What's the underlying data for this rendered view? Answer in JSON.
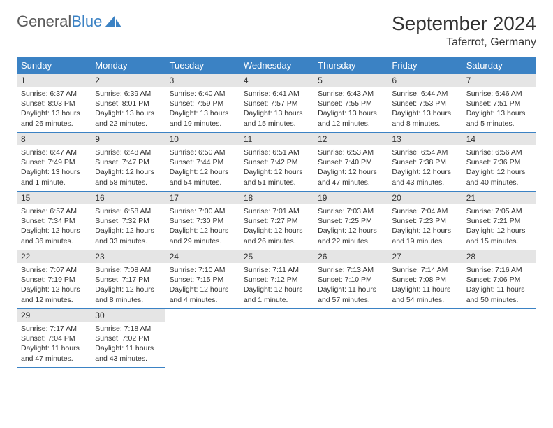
{
  "brand": {
    "word1": "General",
    "word2": "Blue"
  },
  "title": "September 2024",
  "location": "Taferrot, Germany",
  "colors": {
    "header_bg": "#3b82c4",
    "header_text": "#ffffff",
    "daynum_bg": "#e5e5e5",
    "border": "#3b82c4",
    "text": "#333333",
    "background": "#ffffff"
  },
  "columns": [
    "Sunday",
    "Monday",
    "Tuesday",
    "Wednesday",
    "Thursday",
    "Friday",
    "Saturday"
  ],
  "weeks": [
    [
      {
        "n": "1",
        "sr": "Sunrise: 6:37 AM",
        "ss": "Sunset: 8:03 PM",
        "d1": "Daylight: 13 hours",
        "d2": "and 26 minutes."
      },
      {
        "n": "2",
        "sr": "Sunrise: 6:39 AM",
        "ss": "Sunset: 8:01 PM",
        "d1": "Daylight: 13 hours",
        "d2": "and 22 minutes."
      },
      {
        "n": "3",
        "sr": "Sunrise: 6:40 AM",
        "ss": "Sunset: 7:59 PM",
        "d1": "Daylight: 13 hours",
        "d2": "and 19 minutes."
      },
      {
        "n": "4",
        "sr": "Sunrise: 6:41 AM",
        "ss": "Sunset: 7:57 PM",
        "d1": "Daylight: 13 hours",
        "d2": "and 15 minutes."
      },
      {
        "n": "5",
        "sr": "Sunrise: 6:43 AM",
        "ss": "Sunset: 7:55 PM",
        "d1": "Daylight: 13 hours",
        "d2": "and 12 minutes."
      },
      {
        "n": "6",
        "sr": "Sunrise: 6:44 AM",
        "ss": "Sunset: 7:53 PM",
        "d1": "Daylight: 13 hours",
        "d2": "and 8 minutes."
      },
      {
        "n": "7",
        "sr": "Sunrise: 6:46 AM",
        "ss": "Sunset: 7:51 PM",
        "d1": "Daylight: 13 hours",
        "d2": "and 5 minutes."
      }
    ],
    [
      {
        "n": "8",
        "sr": "Sunrise: 6:47 AM",
        "ss": "Sunset: 7:49 PM",
        "d1": "Daylight: 13 hours",
        "d2": "and 1 minute."
      },
      {
        "n": "9",
        "sr": "Sunrise: 6:48 AM",
        "ss": "Sunset: 7:47 PM",
        "d1": "Daylight: 12 hours",
        "d2": "and 58 minutes."
      },
      {
        "n": "10",
        "sr": "Sunrise: 6:50 AM",
        "ss": "Sunset: 7:44 PM",
        "d1": "Daylight: 12 hours",
        "d2": "and 54 minutes."
      },
      {
        "n": "11",
        "sr": "Sunrise: 6:51 AM",
        "ss": "Sunset: 7:42 PM",
        "d1": "Daylight: 12 hours",
        "d2": "and 51 minutes."
      },
      {
        "n": "12",
        "sr": "Sunrise: 6:53 AM",
        "ss": "Sunset: 7:40 PM",
        "d1": "Daylight: 12 hours",
        "d2": "and 47 minutes."
      },
      {
        "n": "13",
        "sr": "Sunrise: 6:54 AM",
        "ss": "Sunset: 7:38 PM",
        "d1": "Daylight: 12 hours",
        "d2": "and 43 minutes."
      },
      {
        "n": "14",
        "sr": "Sunrise: 6:56 AM",
        "ss": "Sunset: 7:36 PM",
        "d1": "Daylight: 12 hours",
        "d2": "and 40 minutes."
      }
    ],
    [
      {
        "n": "15",
        "sr": "Sunrise: 6:57 AM",
        "ss": "Sunset: 7:34 PM",
        "d1": "Daylight: 12 hours",
        "d2": "and 36 minutes."
      },
      {
        "n": "16",
        "sr": "Sunrise: 6:58 AM",
        "ss": "Sunset: 7:32 PM",
        "d1": "Daylight: 12 hours",
        "d2": "and 33 minutes."
      },
      {
        "n": "17",
        "sr": "Sunrise: 7:00 AM",
        "ss": "Sunset: 7:30 PM",
        "d1": "Daylight: 12 hours",
        "d2": "and 29 minutes."
      },
      {
        "n": "18",
        "sr": "Sunrise: 7:01 AM",
        "ss": "Sunset: 7:27 PM",
        "d1": "Daylight: 12 hours",
        "d2": "and 26 minutes."
      },
      {
        "n": "19",
        "sr": "Sunrise: 7:03 AM",
        "ss": "Sunset: 7:25 PM",
        "d1": "Daylight: 12 hours",
        "d2": "and 22 minutes."
      },
      {
        "n": "20",
        "sr": "Sunrise: 7:04 AM",
        "ss": "Sunset: 7:23 PM",
        "d1": "Daylight: 12 hours",
        "d2": "and 19 minutes."
      },
      {
        "n": "21",
        "sr": "Sunrise: 7:05 AM",
        "ss": "Sunset: 7:21 PM",
        "d1": "Daylight: 12 hours",
        "d2": "and 15 minutes."
      }
    ],
    [
      {
        "n": "22",
        "sr": "Sunrise: 7:07 AM",
        "ss": "Sunset: 7:19 PM",
        "d1": "Daylight: 12 hours",
        "d2": "and 12 minutes."
      },
      {
        "n": "23",
        "sr": "Sunrise: 7:08 AM",
        "ss": "Sunset: 7:17 PM",
        "d1": "Daylight: 12 hours",
        "d2": "and 8 minutes."
      },
      {
        "n": "24",
        "sr": "Sunrise: 7:10 AM",
        "ss": "Sunset: 7:15 PM",
        "d1": "Daylight: 12 hours",
        "d2": "and 4 minutes."
      },
      {
        "n": "25",
        "sr": "Sunrise: 7:11 AM",
        "ss": "Sunset: 7:12 PM",
        "d1": "Daylight: 12 hours",
        "d2": "and 1 minute."
      },
      {
        "n": "26",
        "sr": "Sunrise: 7:13 AM",
        "ss": "Sunset: 7:10 PM",
        "d1": "Daylight: 11 hours",
        "d2": "and 57 minutes."
      },
      {
        "n": "27",
        "sr": "Sunrise: 7:14 AM",
        "ss": "Sunset: 7:08 PM",
        "d1": "Daylight: 11 hours",
        "d2": "and 54 minutes."
      },
      {
        "n": "28",
        "sr": "Sunrise: 7:16 AM",
        "ss": "Sunset: 7:06 PM",
        "d1": "Daylight: 11 hours",
        "d2": "and 50 minutes."
      }
    ],
    [
      {
        "n": "29",
        "sr": "Sunrise: 7:17 AM",
        "ss": "Sunset: 7:04 PM",
        "d1": "Daylight: 11 hours",
        "d2": "and 47 minutes."
      },
      {
        "n": "30",
        "sr": "Sunrise: 7:18 AM",
        "ss": "Sunset: 7:02 PM",
        "d1": "Daylight: 11 hours",
        "d2": "and 43 minutes."
      },
      null,
      null,
      null,
      null,
      null
    ]
  ]
}
